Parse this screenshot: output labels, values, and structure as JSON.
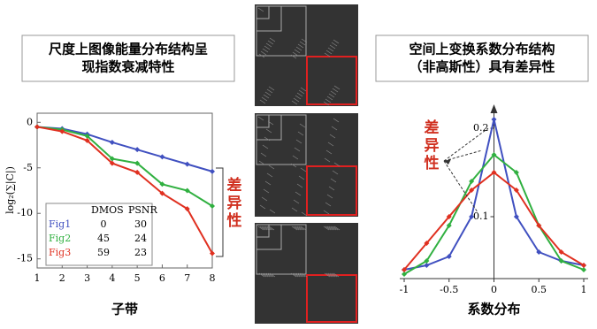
{
  "chart_data": [
    {
      "type": "line",
      "title": [
        "尺度上图像能量分布结构呈",
        "现指数衰减特性"
      ],
      "xlabel": "子带",
      "ylabel": "log₂(∑|C|)",
      "x": [
        1,
        2,
        3,
        4,
        5,
        6,
        7,
        8
      ],
      "xlim": [
        1,
        8
      ],
      "xticks": [
        1,
        2,
        3,
        4,
        5,
        6,
        7,
        8
      ],
      "ylim": [
        -16,
        1
      ],
      "yticks": [
        0,
        -5,
        -10,
        -15
      ],
      "legend_columns": [
        "DMOS",
        "PSNR"
      ],
      "annotation": "差异性",
      "series": [
        {
          "name": "Fig1",
          "color": "#4050c0",
          "dmos": 0,
          "psnr": 30,
          "values": [
            -0.5,
            -0.7,
            -1.3,
            -2.2,
            -3.0,
            -3.8,
            -4.6,
            -5.4
          ]
        },
        {
          "name": "Fig2",
          "color": "#30b040",
          "dmos": 45,
          "psnr": 24,
          "values": [
            -0.5,
            -0.8,
            -1.5,
            -4.0,
            -4.5,
            -6.8,
            -7.5,
            -9.2
          ]
        },
        {
          "name": "Fig3",
          "color": "#e03020",
          "dmos": 59,
          "psnr": 23,
          "values": [
            -0.5,
            -1.0,
            -2.0,
            -4.5,
            -5.5,
            -7.8,
            -9.5,
            -14.4
          ]
        }
      ]
    },
    {
      "type": "line",
      "title": [
        "空间上变换系数分布结构",
        "（非高斯性）具有差异性"
      ],
      "xlabel": "系数分布",
      "x": [
        -1,
        -0.75,
        -0.5,
        -0.25,
        0,
        0.25,
        0.5,
        0.75,
        1
      ],
      "xlim": [
        -1,
        1
      ],
      "xticks": [
        -1,
        -0.5,
        0,
        0.5,
        1
      ],
      "ylim": [
        0.03,
        0.22
      ],
      "yticks": [
        0.1,
        0.2
      ],
      "annotation": "差异性",
      "series": [
        {
          "color": "#4050c0",
          "values": [
            0.04,
            0.045,
            0.055,
            0.1,
            0.21,
            0.1,
            0.06,
            0.05,
            0.045
          ]
        },
        {
          "color": "#30b040",
          "values": [
            0.035,
            0.05,
            0.09,
            0.14,
            0.17,
            0.15,
            0.09,
            0.05,
            0.04
          ]
        },
        {
          "color": "#e03020",
          "values": [
            0.04,
            0.07,
            0.1,
            0.13,
            0.15,
            0.13,
            0.09,
            0.06,
            0.045
          ]
        }
      ]
    }
  ]
}
